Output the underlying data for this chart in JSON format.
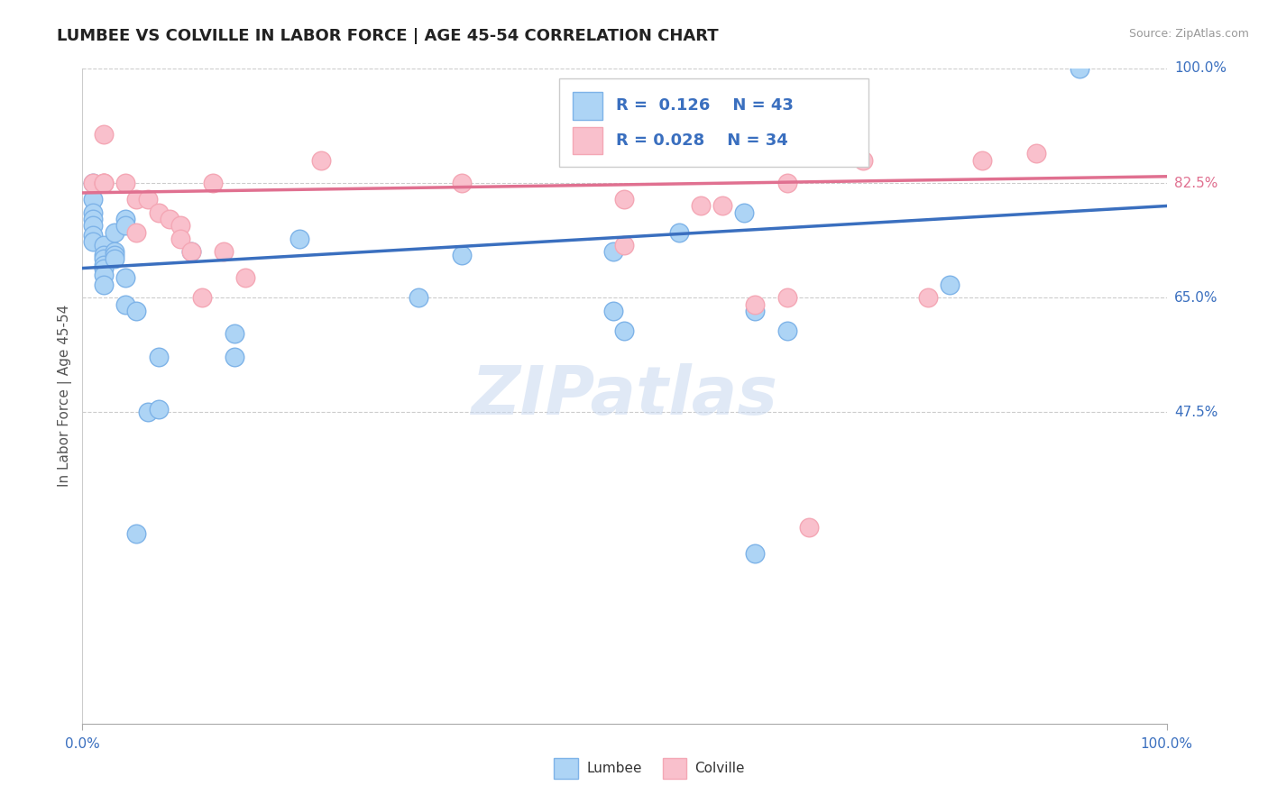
{
  "title": "LUMBEE VS COLVILLE IN LABOR FORCE | AGE 45-54 CORRELATION CHART",
  "source_text": "Source: ZipAtlas.com",
  "ylabel": "In Labor Force | Age 45-54",
  "xlim": [
    0.0,
    1.0
  ],
  "ylim": [
    0.0,
    1.0
  ],
  "yticks": [
    0.475,
    0.65,
    0.825,
    1.0
  ],
  "ytick_labels": [
    "47.5%",
    "65.0%",
    "82.5%",
    "100.0%"
  ],
  "ytick_colors": [
    "#3A6FBF",
    "#3A6FBF",
    "#E07090",
    "#3A6FBF"
  ],
  "watermark": "ZIPatlas",
  "legend_R_blue": "0.126",
  "legend_N_blue": "43",
  "legend_R_pink": "0.028",
  "legend_N_pink": "34",
  "legend_label_blue": "Lumbee",
  "legend_label_pink": "Colville",
  "blue_color": "#ADD4F5",
  "pink_color": "#F9C0CC",
  "blue_edge_color": "#7EB3E8",
  "pink_edge_color": "#F4A7B5",
  "blue_line_color": "#3A6FBF",
  "pink_line_color": "#E07090",
  "blue_scatter": [
    [
      0.01,
      0.825
    ],
    [
      0.01,
      0.8
    ],
    [
      0.01,
      0.78
    ],
    [
      0.01,
      0.77
    ],
    [
      0.01,
      0.76
    ],
    [
      0.01,
      0.745
    ],
    [
      0.01,
      0.735
    ],
    [
      0.02,
      0.73
    ],
    [
      0.02,
      0.715
    ],
    [
      0.02,
      0.71
    ],
    [
      0.02,
      0.7
    ],
    [
      0.02,
      0.695
    ],
    [
      0.02,
      0.685
    ],
    [
      0.02,
      0.67
    ],
    [
      0.03,
      0.75
    ],
    [
      0.03,
      0.72
    ],
    [
      0.03,
      0.715
    ],
    [
      0.03,
      0.71
    ],
    [
      0.04,
      0.77
    ],
    [
      0.04,
      0.76
    ],
    [
      0.04,
      0.68
    ],
    [
      0.04,
      0.64
    ],
    [
      0.05,
      0.63
    ],
    [
      0.06,
      0.475
    ],
    [
      0.07,
      0.48
    ],
    [
      0.07,
      0.56
    ],
    [
      0.1,
      0.72
    ],
    [
      0.14,
      0.595
    ],
    [
      0.14,
      0.56
    ],
    [
      0.2,
      0.74
    ],
    [
      0.31,
      0.65
    ],
    [
      0.35,
      0.715
    ],
    [
      0.49,
      0.72
    ],
    [
      0.49,
      0.63
    ],
    [
      0.5,
      0.6
    ],
    [
      0.55,
      0.75
    ],
    [
      0.61,
      0.78
    ],
    [
      0.62,
      0.63
    ],
    [
      0.65,
      0.6
    ],
    [
      0.8,
      0.67
    ],
    [
      0.92,
      1.0
    ],
    [
      0.05,
      0.29
    ],
    [
      0.62,
      0.26
    ]
  ],
  "pink_scatter": [
    [
      0.01,
      0.825
    ],
    [
      0.02,
      0.825
    ],
    [
      0.02,
      0.825
    ],
    [
      0.02,
      0.825
    ],
    [
      0.02,
      0.9
    ],
    [
      0.04,
      0.825
    ],
    [
      0.05,
      0.8
    ],
    [
      0.05,
      0.75
    ],
    [
      0.06,
      0.8
    ],
    [
      0.07,
      0.78
    ],
    [
      0.08,
      0.77
    ],
    [
      0.09,
      0.76
    ],
    [
      0.09,
      0.74
    ],
    [
      0.1,
      0.72
    ],
    [
      0.11,
      0.65
    ],
    [
      0.12,
      0.825
    ],
    [
      0.13,
      0.72
    ],
    [
      0.15,
      0.68
    ],
    [
      0.22,
      0.86
    ],
    [
      0.35,
      0.825
    ],
    [
      0.49,
      0.92
    ],
    [
      0.5,
      0.87
    ],
    [
      0.5,
      0.8
    ],
    [
      0.5,
      0.73
    ],
    [
      0.57,
      0.79
    ],
    [
      0.59,
      0.79
    ],
    [
      0.62,
      0.64
    ],
    [
      0.65,
      0.65
    ],
    [
      0.65,
      0.825
    ],
    [
      0.72,
      0.86
    ],
    [
      0.78,
      0.65
    ],
    [
      0.83,
      0.86
    ],
    [
      0.88,
      0.87
    ],
    [
      0.67,
      0.3
    ]
  ],
  "blue_trend_x": [
    0.0,
    1.0
  ],
  "blue_trend_y": [
    0.695,
    0.79
  ],
  "pink_trend_x": [
    0.0,
    1.0
  ],
  "pink_trend_y": [
    0.81,
    0.835
  ],
  "title_fontsize": 13,
  "axis_label_fontsize": 11,
  "tick_fontsize": 11,
  "background_color": "#ffffff",
  "grid_color": "#cccccc"
}
